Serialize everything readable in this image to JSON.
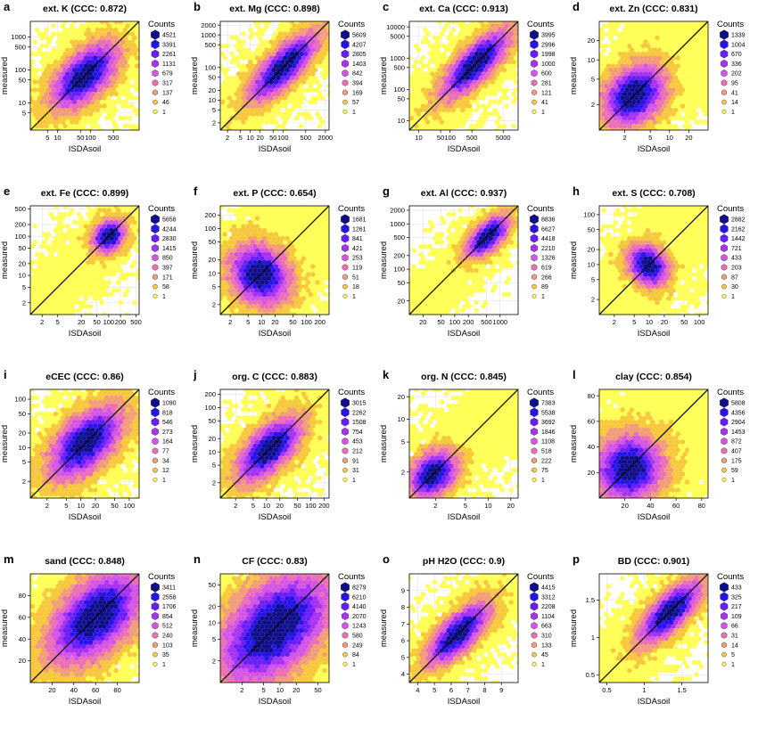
{
  "palette": [
    "#ffff55",
    "#f7c83c",
    "#f39c7a",
    "#ea6fb3",
    "#d454e6",
    "#a632f3",
    "#6a1ef7",
    "#2713e6",
    "#0f0f8c"
  ],
  "legend_title": "Counts",
  "x_label": "ISDAsoil",
  "y_label": "measured",
  "chart_data": [
    {
      "letter": "a",
      "title": "ext. K  (CCC: 0.872)",
      "type": "hexbin",
      "scale": "log",
      "lim": [
        1.5,
        3000
      ],
      "xticks": [
        5,
        10,
        50,
        100,
        500
      ],
      "yticks": [
        5,
        10,
        50,
        100,
        500,
        1000
      ],
      "counts": [
        "4521",
        "3391",
        "2261",
        "1131",
        "679",
        "317",
        "137",
        "46",
        "1"
      ],
      "ccc": 0.872,
      "center": [
        0.5,
        0.5
      ],
      "spread": 0.18,
      "width": 0.13
    },
    {
      "letter": "b",
      "title": "ext. Mg  (CCC: 0.898)",
      "type": "hexbin",
      "scale": "log",
      "lim": [
        1.2,
        2600
      ],
      "xticks": [
        2,
        5,
        10,
        20,
        50,
        100,
        500,
        2000
      ],
      "yticks": [
        2,
        5,
        10,
        20,
        50,
        100,
        500,
        1000,
        2000
      ],
      "counts": [
        "5609",
        "4207",
        "2805",
        "1403",
        "842",
        "394",
        "169",
        "57",
        "1"
      ],
      "ccc": 0.898,
      "center": [
        0.58,
        0.58
      ],
      "spread": 0.2,
      "width": 0.1
    },
    {
      "letter": "c",
      "title": "ext. Ca  (CCC: 0.913)",
      "type": "hexbin",
      "scale": "log",
      "lim": [
        5,
        15000
      ],
      "xticks": [
        10,
        50,
        100,
        500,
        5000
      ],
      "yticks": [
        10,
        50,
        100,
        500,
        1000,
        5000,
        10000
      ],
      "counts": [
        "3995",
        "2996",
        "1998",
        "1000",
        "600",
        "281",
        "121",
        "41",
        "1"
      ],
      "ccc": 0.913,
      "center": [
        0.6,
        0.62
      ],
      "spread": 0.2,
      "width": 0.1
    },
    {
      "letter": "d",
      "title": "ext. Zn  (CCC: 0.831)",
      "type": "hexbin",
      "scale": "log",
      "lim": [
        0.8,
        40
      ],
      "xticks": [
        2,
        5,
        10,
        20
      ],
      "yticks": [
        2,
        5,
        10,
        20
      ],
      "counts": [
        "1339",
        "1004",
        "670",
        "336",
        "202",
        "95",
        "41",
        "14",
        "1"
      ],
      "ccc": 0.831,
      "center": [
        0.32,
        0.32
      ],
      "spread": 0.15,
      "width": 0.16
    },
    {
      "letter": "e",
      "title": "ext. Fe  (CCC: 0.899)",
      "type": "hexbin",
      "scale": "log",
      "lim": [
        1,
        600
      ],
      "xticks": [
        2,
        5,
        20,
        50,
        100,
        200,
        500
      ],
      "yticks": [
        2,
        5,
        10,
        20,
        50,
        100,
        200,
        500
      ],
      "counts": [
        "5658",
        "4244",
        "2830",
        "1415",
        "850",
        "397",
        "171",
        "58",
        "1"
      ],
      "ccc": 0.899,
      "center": [
        0.72,
        0.72
      ],
      "spread": 0.08,
      "width": 0.09
    },
    {
      "letter": "f",
      "title": "ext. P  (CCC: 0.654)",
      "type": "hexbin",
      "scale": "log",
      "lim": [
        1.2,
        320
      ],
      "xticks": [
        2,
        5,
        10,
        20,
        50,
        100,
        200
      ],
      "yticks": [
        2,
        5,
        10,
        20,
        50,
        100,
        200
      ],
      "counts": [
        "1681",
        "1261",
        "841",
        "421",
        "253",
        "119",
        "51",
        "18",
        "1"
      ],
      "ccc": 0.654,
      "center": [
        0.33,
        0.4
      ],
      "spread": 0.12,
      "width": 0.2
    },
    {
      "letter": "g",
      "title": "ext. Al  (CCC: 0.937)",
      "type": "hexbin",
      "scale": "log",
      "lim": [
        10,
        2500
      ],
      "xticks": [
        20,
        50,
        100,
        200,
        500,
        1000
      ],
      "yticks": [
        20,
        50,
        100,
        200,
        500,
        1000,
        2000
      ],
      "counts": [
        "8836",
        "6627",
        "4418",
        "2210",
        "1326",
        "619",
        "266",
        "89",
        "1"
      ],
      "ccc": 0.937,
      "center": [
        0.72,
        0.72
      ],
      "spread": 0.12,
      "width": 0.08
    },
    {
      "letter": "h",
      "title": "ext. S  (CCC: 0.708)",
      "type": "hexbin",
      "scale": "log",
      "lim": [
        1,
        150
      ],
      "xticks": [
        2,
        5,
        10,
        20,
        50,
        100
      ],
      "yticks": [
        2,
        5,
        10,
        20,
        50,
        100
      ],
      "counts": [
        "2882",
        "2162",
        "1442",
        "721",
        "433",
        "203",
        "87",
        "30",
        "1"
      ],
      "ccc": 0.708,
      "center": [
        0.45,
        0.45
      ],
      "spread": 0.08,
      "width": 0.14
    },
    {
      "letter": "i",
      "title": "eCEC  (CCC: 0.86)",
      "type": "hexbin",
      "scale": "log",
      "lim": [
        0.9,
        160
      ],
      "xticks": [
        2,
        5,
        10,
        20,
        50,
        100
      ],
      "yticks": [
        2,
        5,
        10,
        20,
        50,
        100
      ],
      "counts": [
        "1090",
        "818",
        "546",
        "273",
        "164",
        "77",
        "34",
        "12",
        "1"
      ],
      "ccc": 0.86,
      "center": [
        0.5,
        0.52
      ],
      "spread": 0.2,
      "width": 0.15
    },
    {
      "letter": "j",
      "title": "org. C  (CCC: 0.883)",
      "type": "hexbin",
      "scale": "log",
      "lim": [
        0.9,
        260
      ],
      "xticks": [
        2,
        5,
        10,
        20,
        50,
        100,
        200
      ],
      "yticks": [
        2,
        5,
        10,
        20,
        50,
        100,
        200
      ],
      "counts": [
        "3015",
        "2262",
        "1508",
        "754",
        "453",
        "212",
        "91",
        "31",
        "1"
      ],
      "ccc": 0.883,
      "center": [
        0.45,
        0.45
      ],
      "spread": 0.18,
      "width": 0.12
    },
    {
      "letter": "k",
      "title": "org. N  (CCC: 0.845)",
      "type": "hexbin",
      "scale": "log",
      "lim": [
        0.9,
        25
      ],
      "xticks": [
        2,
        5,
        10,
        20
      ],
      "yticks": [
        2,
        5,
        10,
        20
      ],
      "counts": [
        "7383",
        "5538",
        "3692",
        "1846",
        "1108",
        "518",
        "222",
        "75",
        "1"
      ],
      "ccc": 0.845,
      "center": [
        0.22,
        0.22
      ],
      "spread": 0.12,
      "width": 0.12
    },
    {
      "letter": "l",
      "title": "clay  (CCC: 0.854)",
      "type": "hexbin",
      "scale": "linear",
      "lim": [
        0,
        85
      ],
      "xticks": [
        20,
        40,
        60,
        80
      ],
      "yticks": [
        20,
        40,
        60,
        80
      ],
      "counts": [
        "5808",
        "4356",
        "2904",
        "1453",
        "872",
        "407",
        "175",
        "59",
        "1"
      ],
      "ccc": 0.854,
      "center": [
        0.25,
        0.3
      ],
      "spread": 0.15,
      "width": 0.2
    },
    {
      "letter": "m",
      "title": "sand  (CCC: 0.848)",
      "type": "hexbin",
      "scale": "linear",
      "lim": [
        0,
        100
      ],
      "xticks": [
        20,
        40,
        60,
        80
      ],
      "yticks": [
        20,
        40,
        60,
        80
      ],
      "counts": [
        "3411",
        "2558",
        "1706",
        "854",
        "512",
        "240",
        "103",
        "35",
        "1"
      ],
      "ccc": 0.848,
      "center": [
        0.6,
        0.6
      ],
      "spread": 0.25,
      "width": 0.2
    },
    {
      "letter": "n",
      "title": "CF  (CCC: 0.83)",
      "type": "hexbin",
      "scale": "log",
      "lim": [
        0.8,
        80
      ],
      "xticks": [
        2,
        5,
        10,
        20,
        50
      ],
      "yticks": [
        2,
        5,
        10,
        20,
        50
      ],
      "counts": [
        "8279",
        "6210",
        "4140",
        "2070",
        "1243",
        "580",
        "249",
        "84",
        "1"
      ],
      "ccc": 0.83,
      "center": [
        0.5,
        0.5
      ],
      "spread": 0.3,
      "width": 0.25
    },
    {
      "letter": "o",
      "title": "pH H2O  (CCC: 0.9)",
      "type": "hexbin",
      "scale": "linear",
      "lim": [
        3.5,
        10
      ],
      "xticks": [
        4,
        5,
        6,
        7,
        8,
        9
      ],
      "yticks": [
        4,
        5,
        6,
        7,
        8,
        9
      ],
      "counts": [
        "4415",
        "3312",
        "2208",
        "1104",
        "663",
        "310",
        "133",
        "45",
        "1"
      ],
      "ccc": 0.9,
      "center": [
        0.45,
        0.45
      ],
      "spread": 0.18,
      "width": 0.1
    },
    {
      "letter": "p",
      "title": "BD  (CCC: 0.901)",
      "type": "hexbin",
      "scale": "linear",
      "lim": [
        0.4,
        1.85
      ],
      "xticks": [
        0.5,
        1.0,
        1.5
      ],
      "yticks": [
        0.5,
        1.0,
        1.5
      ],
      "counts": [
        "433",
        "325",
        "217",
        "109",
        "66",
        "31",
        "14",
        "5",
        "1"
      ],
      "ccc": 0.901,
      "center": [
        0.65,
        0.65
      ],
      "spread": 0.18,
      "width": 0.1
    }
  ]
}
